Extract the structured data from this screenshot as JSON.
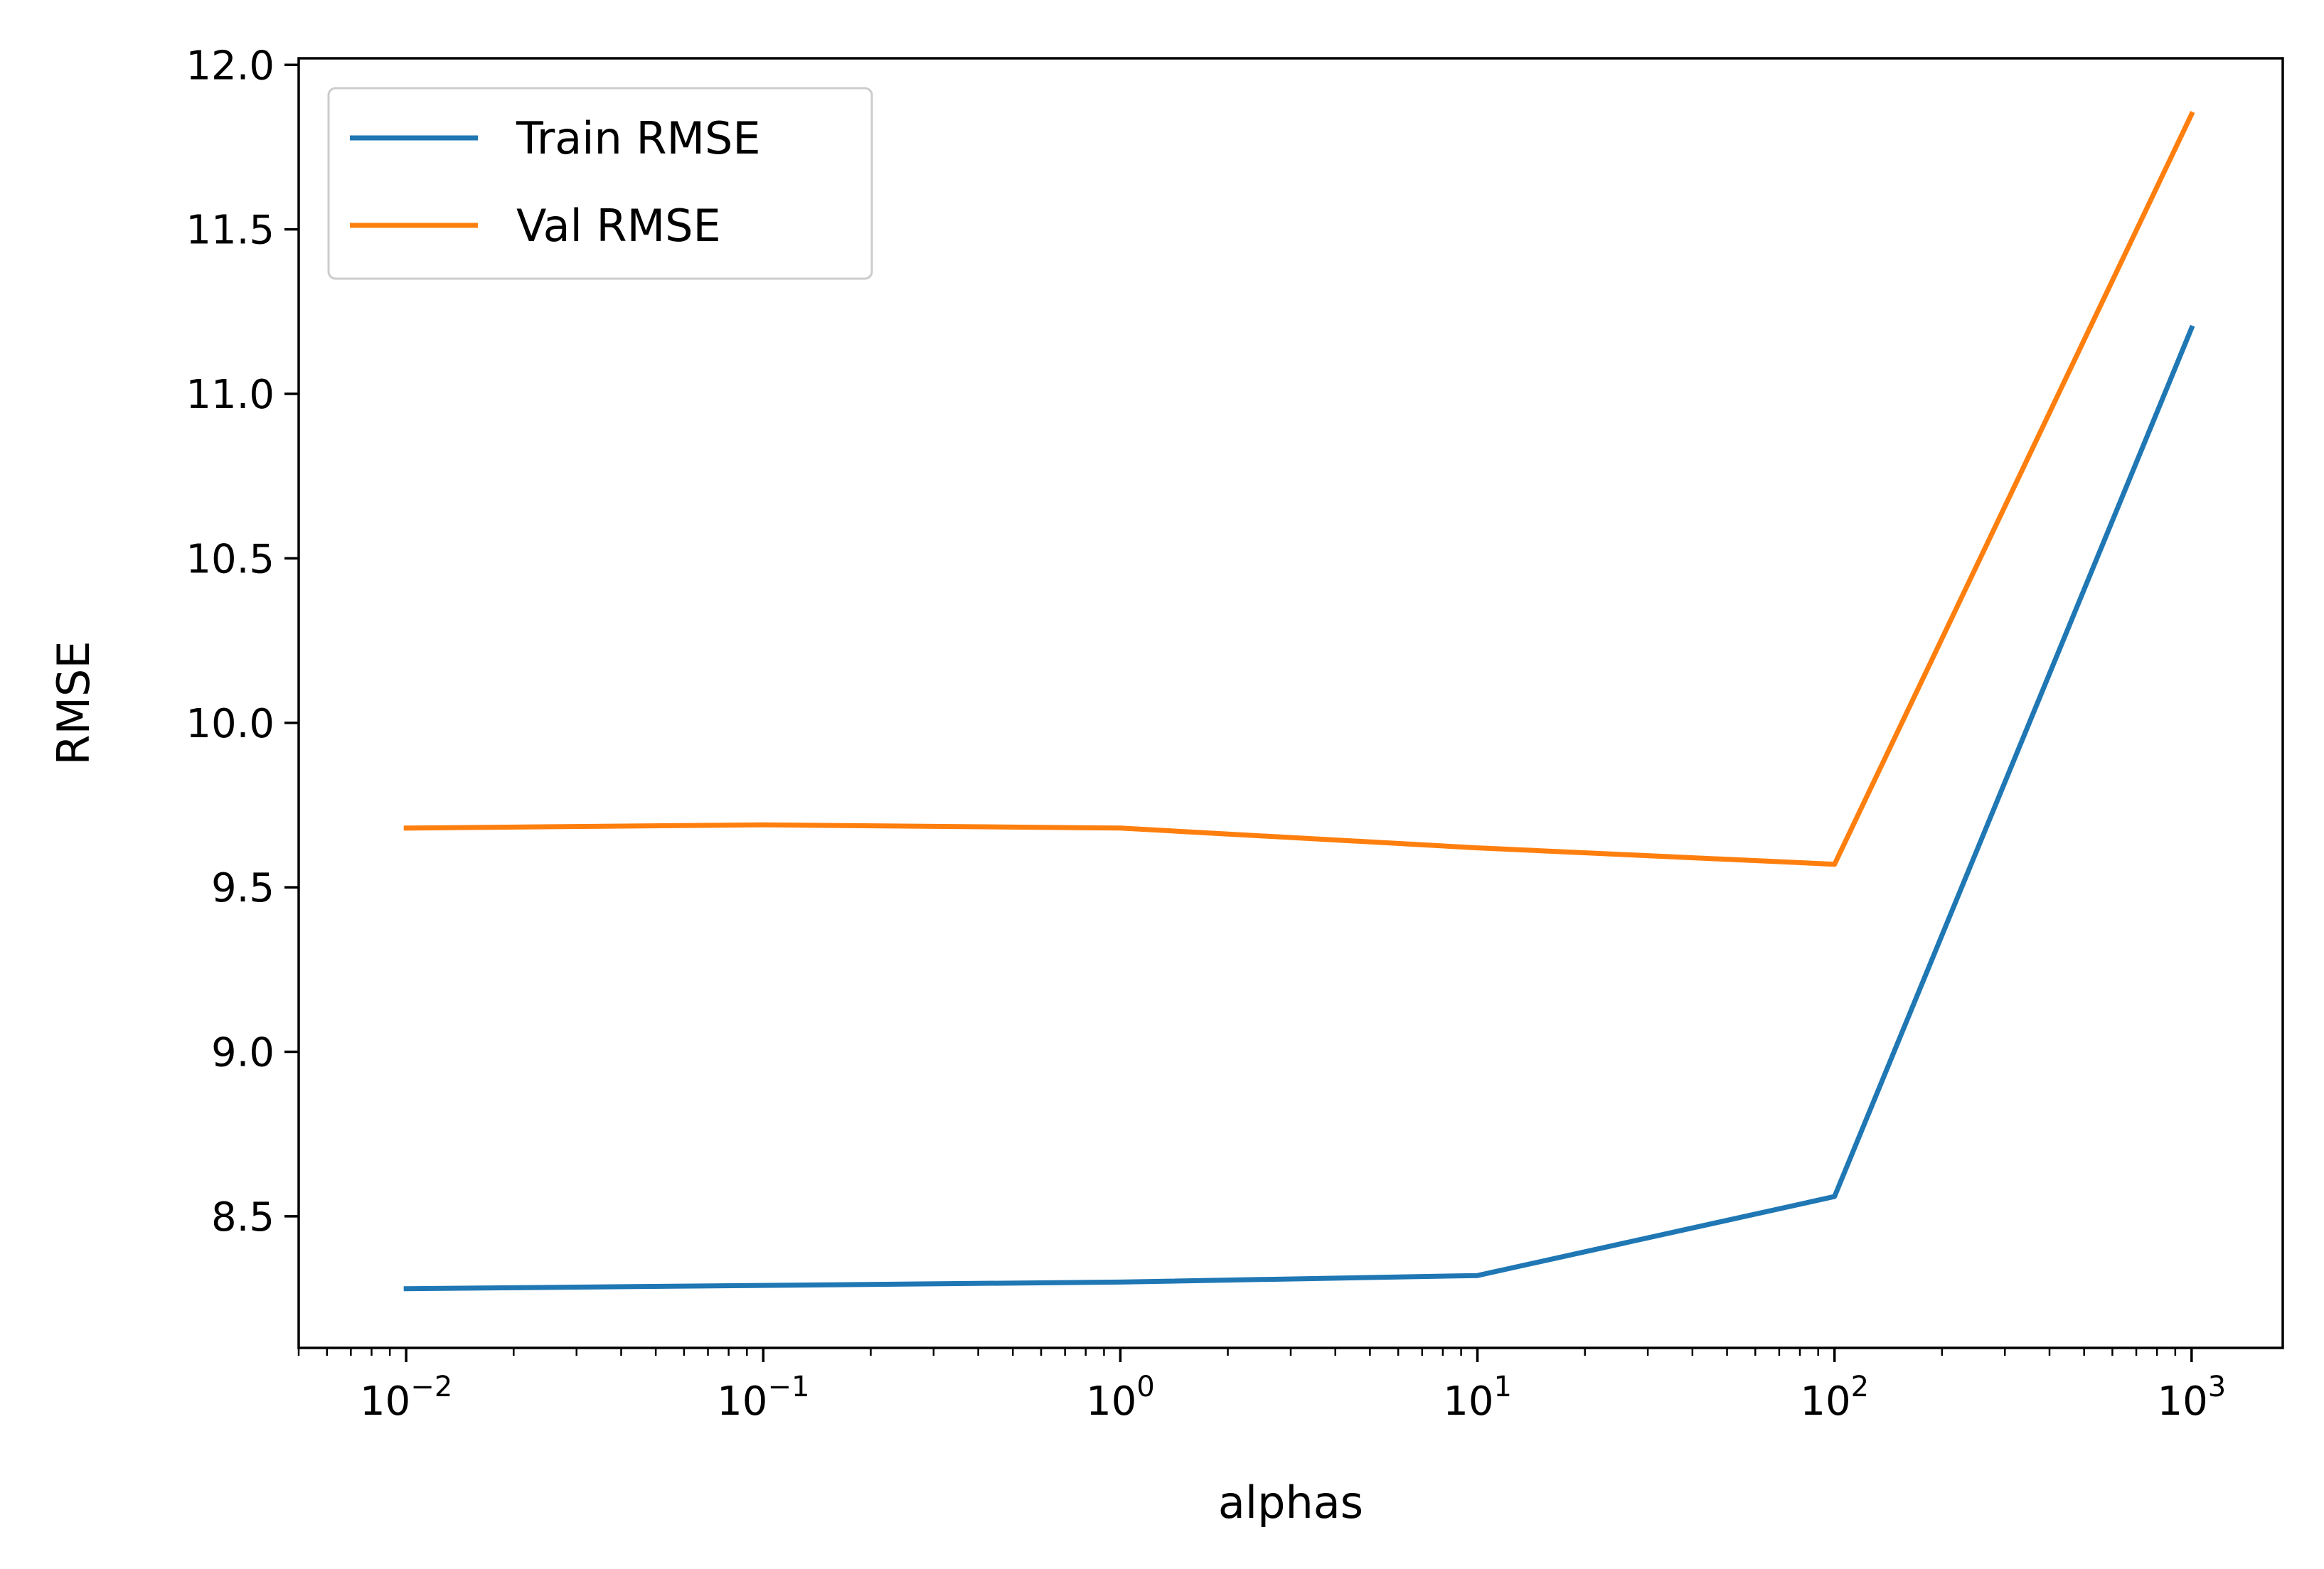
{
  "chart_data": {
    "type": "line",
    "title": "",
    "xlabel": "alphas",
    "ylabel": "RMSE",
    "x_scale": "log",
    "x": [
      0.01,
      0.1,
      1,
      10,
      100,
      1000
    ],
    "x_ticks": [
      {
        "base": "10",
        "exp": "−2"
      },
      {
        "base": "10",
        "exp": "−1"
      },
      {
        "base": "10",
        "exp": "0"
      },
      {
        "base": "10",
        "exp": "1"
      },
      {
        "base": "10",
        "exp": "2"
      },
      {
        "base": "10",
        "exp": "3"
      }
    ],
    "xlim": [
      0.005,
      1800
    ],
    "ylim": [
      8.1,
      12.02
    ],
    "y_ticks": [
      "8.5",
      "9.0",
      "9.5",
      "10.0",
      "10.5",
      "11.0",
      "11.5",
      "12.0"
    ],
    "grid": false,
    "legend_position": "upper-left",
    "series": [
      {
        "name": "Train RMSE",
        "color": "#1f77b4",
        "values": [
          8.28,
          8.29,
          8.3,
          8.32,
          8.56,
          11.2
        ]
      },
      {
        "name": "Val RMSE",
        "color": "#ff7f0e",
        "values": [
          9.68,
          9.69,
          9.68,
          9.62,
          9.57,
          11.85
        ]
      }
    ]
  }
}
